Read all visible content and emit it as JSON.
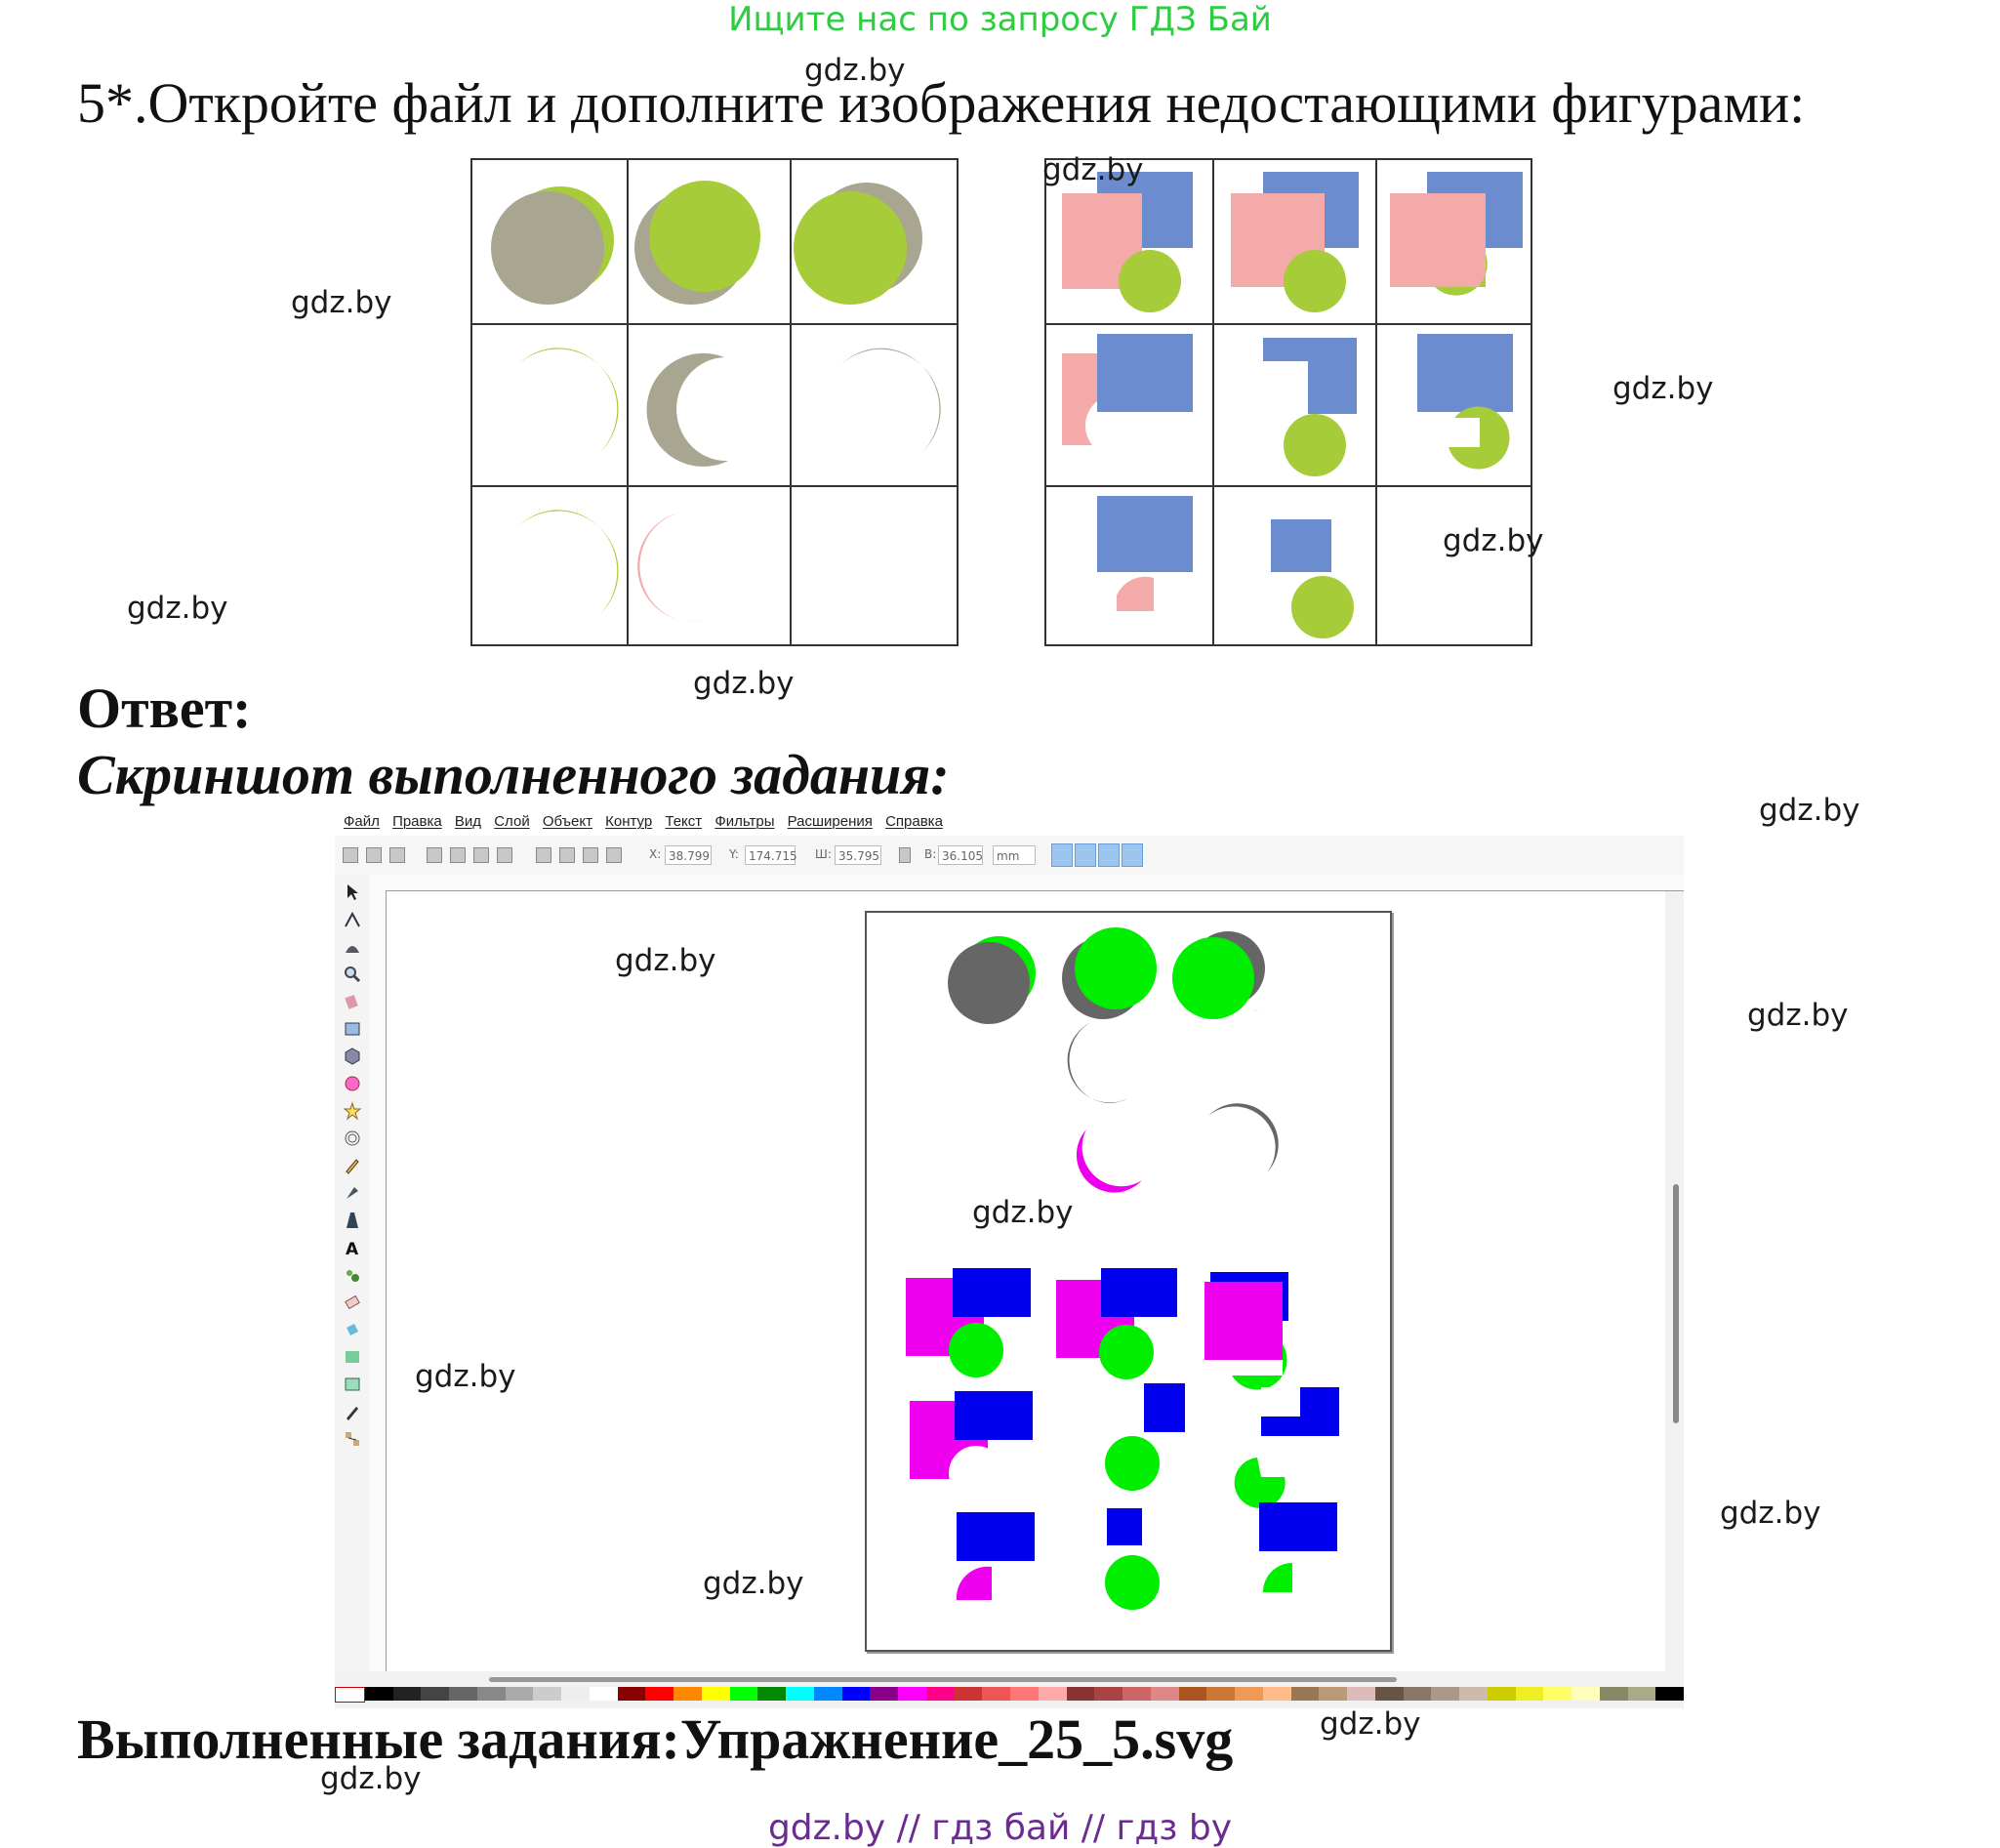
{
  "header": {
    "promo": "Ищите нас по запросу ГДЗ Бай"
  },
  "task": {
    "text": "5*.Откройте файл и дополните изображения недостающими фигурами:"
  },
  "answer": {
    "label": "Ответ:",
    "screenshot_caption": "Скриншот выполненного задания:"
  },
  "completed": {
    "text": "Выполненные задания:Упражнение_25_5.svg"
  },
  "footer": {
    "text": "gdz.by  //  гдз бай  //  гдз by"
  },
  "watermarks": [
    "gdz.by",
    "gdz.by",
    "gdz.by",
    "gdz.by",
    "gdz.by",
    "gdz.by",
    "gdz.by",
    "gdz.by",
    "gdz.by",
    "gdz.by",
    "gdz.by",
    "gdz.by",
    "gdz.by",
    "gdz.by",
    "gdz.by",
    "gdz.by",
    "gdz.by"
  ],
  "inkscape": {
    "menu": [
      "Файл",
      "Правка",
      "Вид",
      "Слой",
      "Объект",
      "Контур",
      "Текст",
      "Фильтры",
      "Расширения",
      "Справка"
    ],
    "toolbar": {
      "x_label": "X:",
      "x_value": "38.799",
      "y_label": "Y:",
      "y_value": "174.715",
      "w_label": "Ш:",
      "w_value": "35.795",
      "h_label": "В:",
      "h_value": "36.105",
      "unit": "mm"
    }
  },
  "colors": {
    "olive_green": "#a6cc3a",
    "gray": "#a8a690",
    "pink": "#f5aaaa",
    "blue_slate": "#6b8dd0",
    "bright_green": "#00ee00",
    "dark_gray": "#666666",
    "magenta": "#ee00ee",
    "blue": "#0000ee"
  }
}
